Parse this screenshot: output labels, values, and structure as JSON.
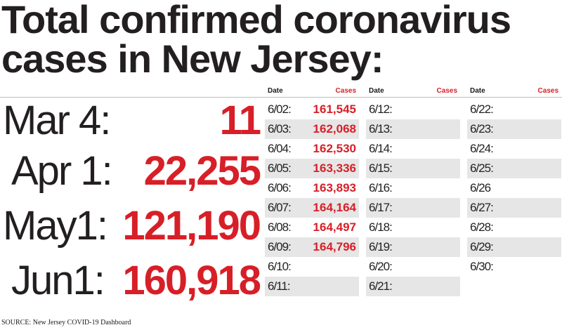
{
  "title": [
    "Total confirmed coronavirus",
    "cases in New Jersey:"
  ],
  "highlights": [
    {
      "date": "Mar 4:",
      "cases": "11"
    },
    {
      "date": "Apr 1:",
      "cases": "22,255"
    },
    {
      "date": "May1:",
      "cases": "121,190"
    },
    {
      "date": "Jun1:",
      "cases": "160,918"
    }
  ],
  "table": {
    "date_header": "Date",
    "cases_header": "Cases",
    "columns": [
      [
        {
          "date": "6/02:",
          "cases": "161,545"
        },
        {
          "date": "6/03:",
          "cases": "162,068"
        },
        {
          "date": "6/04:",
          "cases": "162,530"
        },
        {
          "date": "6/05:",
          "cases": "163,336"
        },
        {
          "date": "6/06:",
          "cases": "163,893"
        },
        {
          "date": "6/07:",
          "cases": "164,164"
        },
        {
          "date": "6/08:",
          "cases": "164,497"
        },
        {
          "date": "6/09:",
          "cases": "164,796"
        },
        {
          "date": "6/10:",
          "cases": ""
        },
        {
          "date": "6/11:",
          "cases": ""
        }
      ],
      [
        {
          "date": "6/12:",
          "cases": ""
        },
        {
          "date": "6/13:",
          "cases": ""
        },
        {
          "date": "6/14:",
          "cases": ""
        },
        {
          "date": "6/15:",
          "cases": ""
        },
        {
          "date": "6/16:",
          "cases": ""
        },
        {
          "date": "6/17:",
          "cases": ""
        },
        {
          "date": "6/18:",
          "cases": ""
        },
        {
          "date": "6/19:",
          "cases": ""
        },
        {
          "date": "6/20:",
          "cases": ""
        },
        {
          "date": "6/21:",
          "cases": ""
        }
      ],
      [
        {
          "date": "6/22:",
          "cases": ""
        },
        {
          "date": "6/23:",
          "cases": ""
        },
        {
          "date": "6/24:",
          "cases": ""
        },
        {
          "date": "6/25:",
          "cases": ""
        },
        {
          "date": "6/26",
          "cases": ""
        },
        {
          "date": "6/27:",
          "cases": ""
        },
        {
          "date": "6/28:",
          "cases": ""
        },
        {
          "date": "6/29:",
          "cases": ""
        },
        {
          "date": "6/30:",
          "cases": ""
        }
      ]
    ]
  },
  "source": "SOURCE: New Jersey COVID-19 Dashboard",
  "colors": {
    "accent": "#d71f27",
    "text": "#231f20",
    "row_stripe": "#e6e6e6"
  }
}
